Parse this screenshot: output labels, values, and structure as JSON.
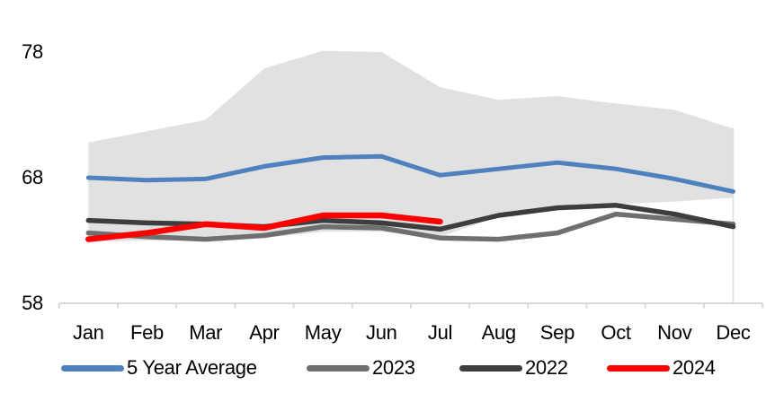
{
  "chart_data": {
    "type": "line",
    "title": "",
    "categories": [
      "Jan",
      "Feb",
      "Mar",
      "Apr",
      "May",
      "Jun",
      "Jul",
      "Aug",
      "Sep",
      "Oct",
      "Nov",
      "Dec"
    ],
    "y_axis": {
      "tick_labels": [
        "78",
        "68",
        "58"
      ],
      "tick_values": [
        78,
        68,
        58
      ],
      "min": 58,
      "max": 78,
      "grid": "off"
    },
    "band": {
      "name": "5-year-range",
      "color": "#E1E1E1",
      "upper": [
        70.8,
        71.7,
        72.6,
        76.7,
        78.1,
        78.0,
        75.2,
        74.2,
        74.5,
        73.9,
        73.4,
        71.9
      ],
      "lower": [
        62.9,
        63.0,
        63.0,
        63.2,
        63.7,
        63.7,
        63.3,
        64.9,
        65.7,
        65.9,
        66.1,
        66.4
      ]
    },
    "series": [
      {
        "name": "5 Year Average",
        "color": "#4E81BD",
        "stroke_width": 5,
        "values": [
          68.0,
          67.8,
          67.9,
          68.9,
          69.6,
          69.7,
          68.2,
          68.7,
          69.2,
          68.7,
          67.9,
          66.9
        ]
      },
      {
        "name": "2023",
        "color": "#6F6F6F",
        "stroke_width": 5.5,
        "values": [
          63.6,
          63.3,
          63.1,
          63.4,
          64.1,
          64.0,
          63.2,
          63.1,
          63.6,
          65.1,
          64.7,
          64.3
        ]
      },
      {
        "name": "2022",
        "color": "#3D3D3D",
        "stroke_width": 5.5,
        "values": [
          64.6,
          64.4,
          64.3,
          64.1,
          64.6,
          64.4,
          63.9,
          65.0,
          65.6,
          65.8,
          65.1,
          64.1
        ]
      },
      {
        "name": "2024",
        "color": "#FF0000",
        "stroke_width": 6.5,
        "values": [
          63.1,
          63.6,
          64.3,
          64.0,
          65.0,
          65.0,
          64.5,
          null,
          null,
          null,
          null,
          null
        ]
      }
    ],
    "legend_position": "bottom",
    "axis_color": "#D9D9D9",
    "dec_gridline_color": "#DEDEDE"
  }
}
